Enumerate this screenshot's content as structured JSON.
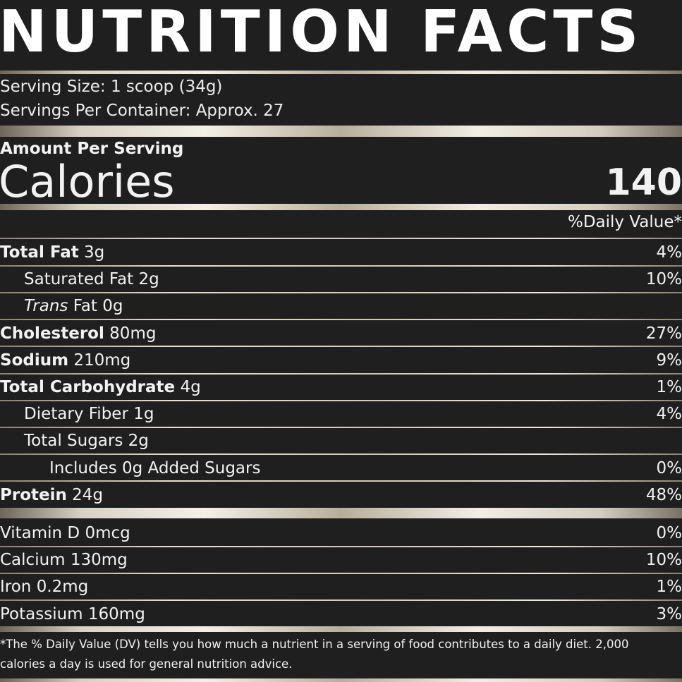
{
  "title": "NUTRITION FACTS",
  "serving_size": "Serving Size: 1 scoop (34g)",
  "servings_per_container": "Servings Per Container: Approx. 27",
  "amount_per_serving": "Amount Per Serving",
  "calories_label": "Calories",
  "calories_value": "140",
  "daily_value_header": "%Daily Value*",
  "nutrients": [
    {
      "name": "Total Fat",
      "amount": "3g",
      "dv": "4%",
      "bold": true,
      "indent": 0
    },
    {
      "name": "Saturated Fat",
      "amount": "2g",
      "dv": "10%",
      "bold": false,
      "indent": 1
    },
    {
      "name": "Trans",
      "name_suffix": "Fat",
      "amount": "0g",
      "dv": "",
      "bold": false,
      "indent": 1,
      "italic": true
    },
    {
      "name": "Cholesterol",
      "amount": "80mg",
      "dv": "27%",
      "bold": true,
      "indent": 0
    },
    {
      "name": "Sodium",
      "amount": "210mg",
      "dv": "9%",
      "bold": true,
      "indent": 0
    },
    {
      "name": "Total Carbohydrate",
      "amount": "4g",
      "dv": "1%",
      "bold": true,
      "indent": 0
    },
    {
      "name": "Dietary Fiber",
      "amount": "1g",
      "dv": "4%",
      "bold": false,
      "indent": 1
    },
    {
      "name": "Total Sugars",
      "amount": "2g",
      "dv": "",
      "bold": false,
      "indent": 1
    },
    {
      "name": "Includes 0g Added Sugars",
      "amount": "",
      "dv": "0%",
      "bold": false,
      "indent": 2
    },
    {
      "name": "Protein",
      "amount": "24g",
      "dv": "48%",
      "bold": true,
      "indent": 0
    }
  ],
  "vitamins": [
    {
      "name": "Vitamin D",
      "amount": "0mcg",
      "dv": "0%"
    },
    {
      "name": "Calcium",
      "amount": "130mg",
      "dv": "10%"
    },
    {
      "name": "Iron",
      "amount": "0.2mg",
      "dv": "1%"
    },
    {
      "name": "Potassium",
      "amount": "160mg",
      "dv": "3%"
    }
  ],
  "footnote_line1": "*The % Daily Value (DV) tells you how much a nutrient in a serving of food contributes to a daily diet. 2,000",
  "footnote_line2": "calories a day is used for general nutrition advice.",
  "colors": {
    "background": "#1f1f1f",
    "text": "#f2f2f2",
    "divider": "#e8e2d6"
  }
}
